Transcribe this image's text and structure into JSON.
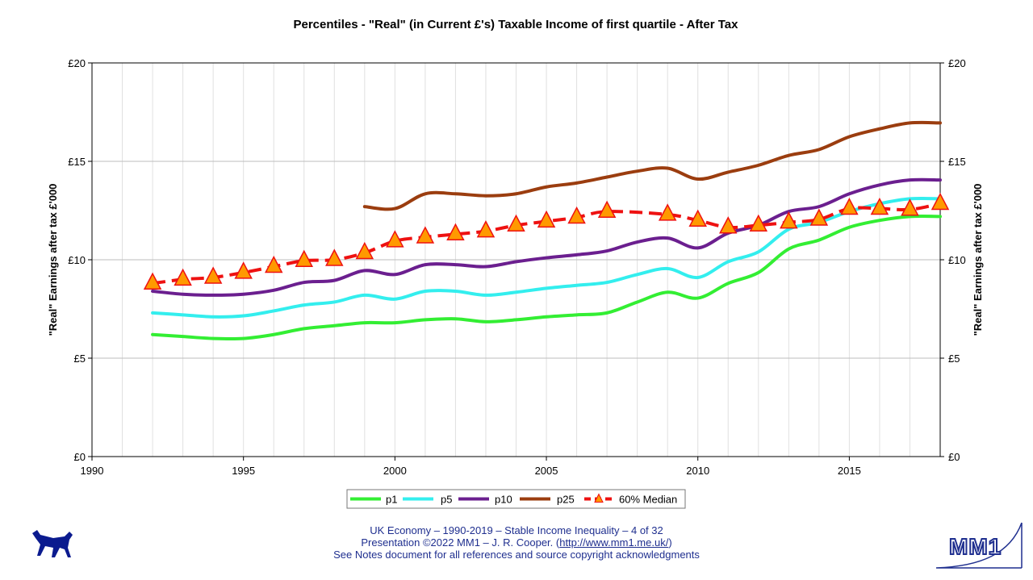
{
  "chart_data": {
    "type": "line",
    "title": "Percentiles - \"Real\" (in Current £'s) Taxable Income of first quartile - After Tax",
    "ylabel_left": "\"Real\" Earnings after tax £'000",
    "ylabel_right": "\"Real\" Earnings after tax £'000",
    "xlim": [
      1990,
      2018
    ],
    "ylim": [
      0,
      20
    ],
    "x_ticks": [
      1990,
      1995,
      2000,
      2005,
      2010,
      2015
    ],
    "x_tick_labels": [
      "1990",
      "1995",
      "2000",
      "2005",
      "2010",
      "2015"
    ],
    "y_ticks": [
      0,
      5,
      10,
      15,
      20
    ],
    "y_tick_labels": [
      "£0",
      "£5",
      "£10",
      "£15",
      "£20"
    ],
    "legend_position": "bottom",
    "series": [
      {
        "name": "p1",
        "color": "#33ee33",
        "x": [
          1992,
          1993,
          1994,
          1995,
          1996,
          1997,
          1998,
          1999,
          2000,
          2001,
          2002,
          2003,
          2004,
          2005,
          2006,
          2007,
          2008,
          2009,
          2010,
          2011,
          2012,
          2013,
          2014,
          2015,
          2016,
          2017,
          2018
        ],
        "values": [
          6.2,
          6.1,
          6.0,
          6.0,
          6.2,
          6.5,
          6.65,
          6.8,
          6.8,
          6.95,
          7.0,
          6.85,
          6.95,
          7.1,
          7.2,
          7.3,
          7.85,
          8.35,
          8.05,
          8.8,
          9.35,
          10.55,
          11.0,
          11.65,
          12.0,
          12.2,
          12.2
        ]
      },
      {
        "name": "p5",
        "color": "#33eeee",
        "x": [
          1992,
          1993,
          1994,
          1995,
          1996,
          1997,
          1998,
          1999,
          2000,
          2001,
          2002,
          2003,
          2004,
          2005,
          2006,
          2007,
          2008,
          2009,
          2010,
          2011,
          2012,
          2013,
          2014,
          2015,
          2016,
          2017,
          2018
        ],
        "values": [
          7.3,
          7.2,
          7.1,
          7.15,
          7.4,
          7.7,
          7.85,
          8.2,
          8.0,
          8.4,
          8.4,
          8.2,
          8.35,
          8.55,
          8.7,
          8.85,
          9.25,
          9.55,
          9.1,
          9.9,
          10.4,
          11.55,
          11.9,
          12.45,
          12.85,
          13.1,
          13.1
        ]
      },
      {
        "name": "p10",
        "color": "#6b1f8f",
        "x": [
          1992,
          1993,
          1994,
          1995,
          1996,
          1997,
          1998,
          1999,
          2000,
          2001,
          2002,
          2003,
          2004,
          2005,
          2006,
          2007,
          2008,
          2009,
          2010,
          2011,
          2012,
          2013,
          2014,
          2015,
          2016,
          2017,
          2018
        ],
        "values": [
          8.4,
          8.25,
          8.2,
          8.25,
          8.45,
          8.85,
          8.95,
          9.45,
          9.25,
          9.75,
          9.75,
          9.65,
          9.9,
          10.1,
          10.25,
          10.45,
          10.9,
          11.1,
          10.6,
          11.35,
          11.75,
          12.45,
          12.7,
          13.35,
          13.8,
          14.05,
          14.05
        ]
      },
      {
        "name": "p25",
        "color": "#9b3d0f",
        "x": [
          1999,
          2000,
          2001,
          2002,
          2003,
          2004,
          2005,
          2006,
          2007,
          2008,
          2009,
          2010,
          2011,
          2012,
          2013,
          2014,
          2015,
          2016,
          2017,
          2018
        ],
        "values": [
          12.7,
          12.6,
          13.35,
          13.35,
          13.25,
          13.35,
          13.7,
          13.9,
          14.2,
          14.5,
          14.65,
          14.1,
          14.45,
          14.8,
          15.3,
          15.6,
          16.25,
          16.65,
          16.95,
          16.95
        ]
      },
      {
        "name": "60% Median",
        "color": "#ee1111",
        "marker_color": "#ff9900",
        "x": [
          1992,
          1993,
          1994,
          1995,
          1996,
          1997,
          1998,
          1999,
          2000,
          2001,
          2002,
          2003,
          2004,
          2005,
          2006,
          2007,
          2008,
          2009,
          2010,
          2011,
          2012,
          2013,
          2014,
          2015,
          2016,
          2017,
          2018
        ],
        "values": [
          8.8,
          9.0,
          9.1,
          9.35,
          9.65,
          9.95,
          10.0,
          10.35,
          10.95,
          11.15,
          11.3,
          11.45,
          11.75,
          11.95,
          12.15,
          12.45,
          null,
          12.3,
          12.0,
          11.65,
          11.75,
          11.9,
          12.05,
          12.6,
          12.6,
          12.55,
          12.85
        ]
      }
    ]
  },
  "footer": {
    "line1": "UK Economy – 1990-2019 – Stable Income Inequality – 4 of 32",
    "line2_prefix": "Presentation ©2022 MM1 – J. R. Cooper. (",
    "line2_link": "http://www.mm1.me.uk/",
    "line2_suffix": ")",
    "line3": "See Notes document for all references and source copyright acknowledgments"
  },
  "logo": {
    "text": "MM1"
  }
}
